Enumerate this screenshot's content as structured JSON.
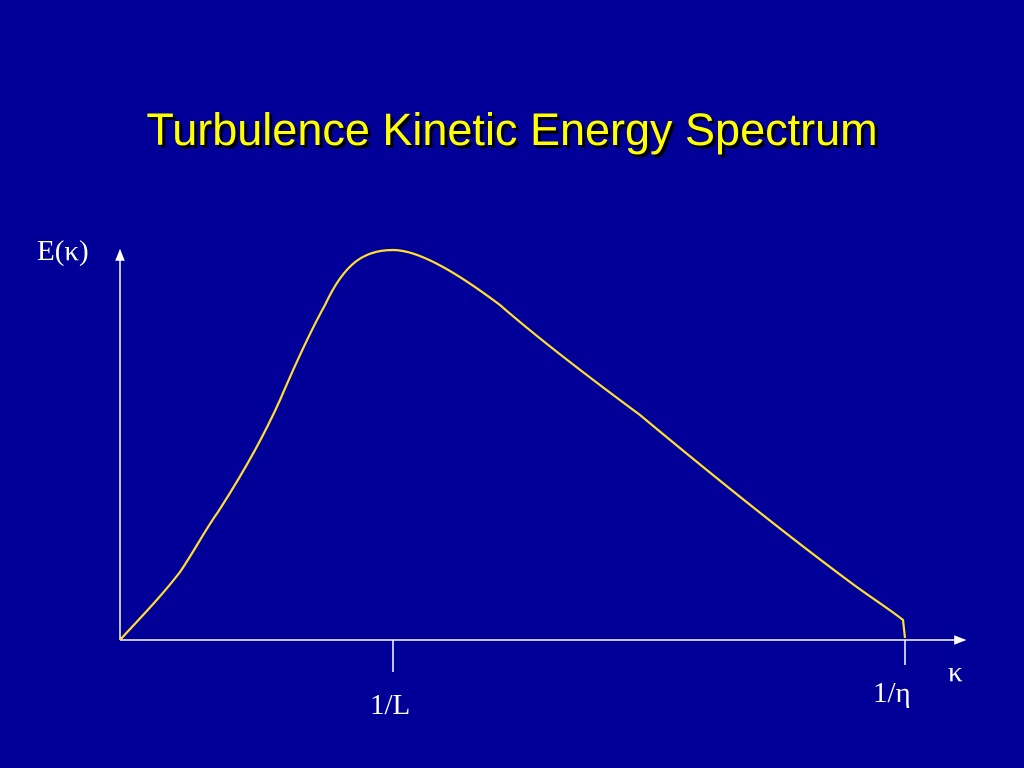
{
  "title": "Turbulence Kinetic Energy Spectrum",
  "y_axis_label": "E(κ)",
  "x_axis_label": "κ",
  "tick_labels": {
    "integral_scale": "1/L",
    "kolmogorov_scale": "1/η"
  },
  "colors": {
    "background": "#000099",
    "title": "#ffff00",
    "curve": "#ffdd33",
    "axes": "#ffffff"
  }
}
